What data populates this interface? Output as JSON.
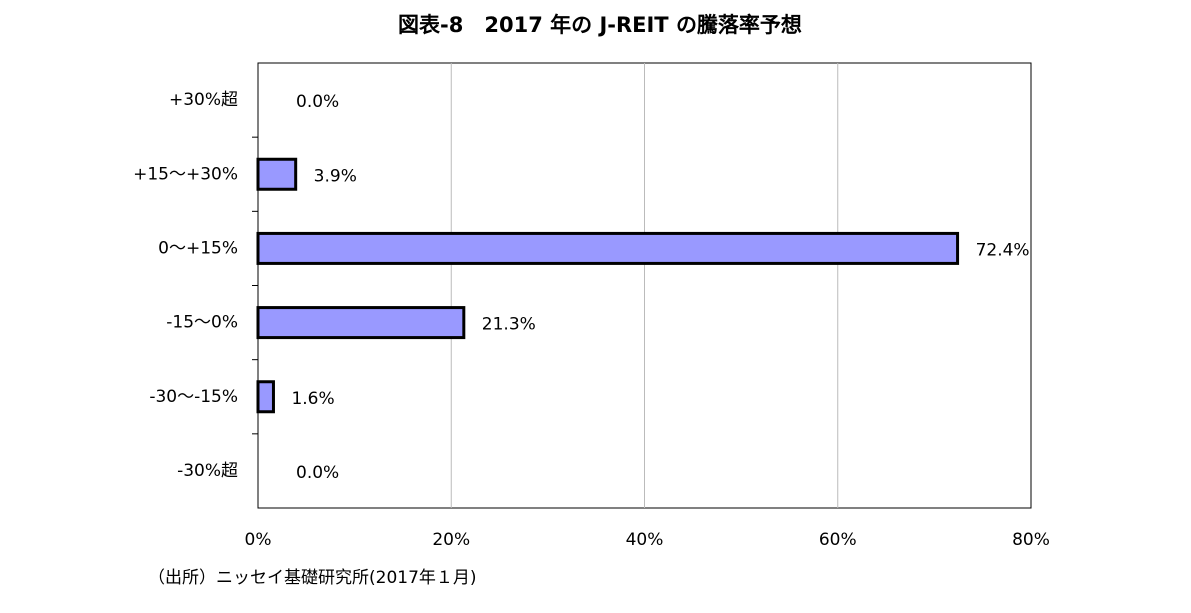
{
  "chart_data": {
    "type": "bar",
    "orientation": "horizontal",
    "title": "図表-8　2017 年の J-REIT の騰落率予想",
    "categories": [
      "+30%超",
      "+15〜+30%",
      "0〜+15%",
      "-15〜0%",
      "-30〜-15%",
      "-30%超"
    ],
    "values": [
      0,
      3.9,
      72.4,
      21.3,
      1.6,
      0
    ],
    "value_labels": [
      "0.0%",
      "3.9%",
      "72.4%",
      "21.3%",
      "1.6%",
      "0.0%"
    ],
    "color": "#9999ff",
    "xlim": [
      0,
      80
    ],
    "xticks": [
      {
        "value": 0,
        "label": "0%"
      },
      {
        "value": 20,
        "label": "20%"
      },
      {
        "value": 40,
        "label": "40%"
      },
      {
        "value": 60,
        "label": "60%"
      },
      {
        "value": 80,
        "label": "80%"
      }
    ],
    "grid": true,
    "source": "（出所）ニッセイ基礎研究所(2017年１月)"
  }
}
